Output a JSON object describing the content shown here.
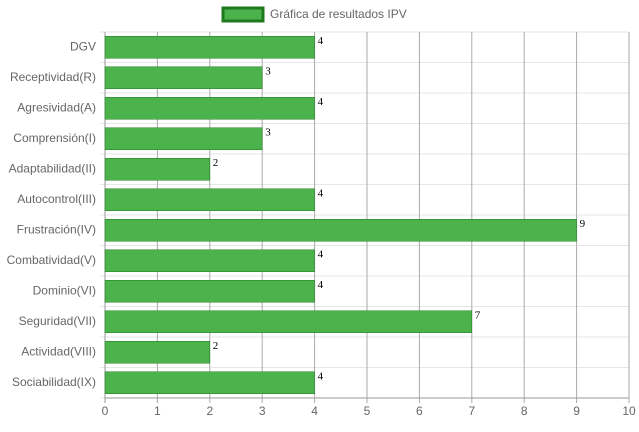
{
  "chart_data": {
    "type": "bar",
    "orientation": "horizontal",
    "categories": [
      "DGV",
      "Receptividad(R)",
      "Agresividad(A)",
      "Comprensión(I)",
      "Adaptabilidad(II)",
      "Autocontrol(III)",
      "Frustración(IV)",
      "Combatividad(V)",
      "Dominio(VI)",
      "Seguridad(VII)",
      "Actividad(VIII)",
      "Sociabilidad(IX)"
    ],
    "series": [
      {
        "name": "Gráfica de resultados IPV",
        "color": "#4cb24c",
        "border_color": "#1f7a1f",
        "values": [
          4,
          3,
          4,
          3,
          2,
          4,
          9,
          4,
          4,
          7,
          2,
          4
        ]
      }
    ],
    "xlim": [
      0,
      10
    ],
    "xticks": [
      0,
      1,
      2,
      3,
      4,
      5,
      6,
      7,
      8,
      9,
      10
    ],
    "grid": true,
    "legend": "top",
    "data_labels": true
  }
}
